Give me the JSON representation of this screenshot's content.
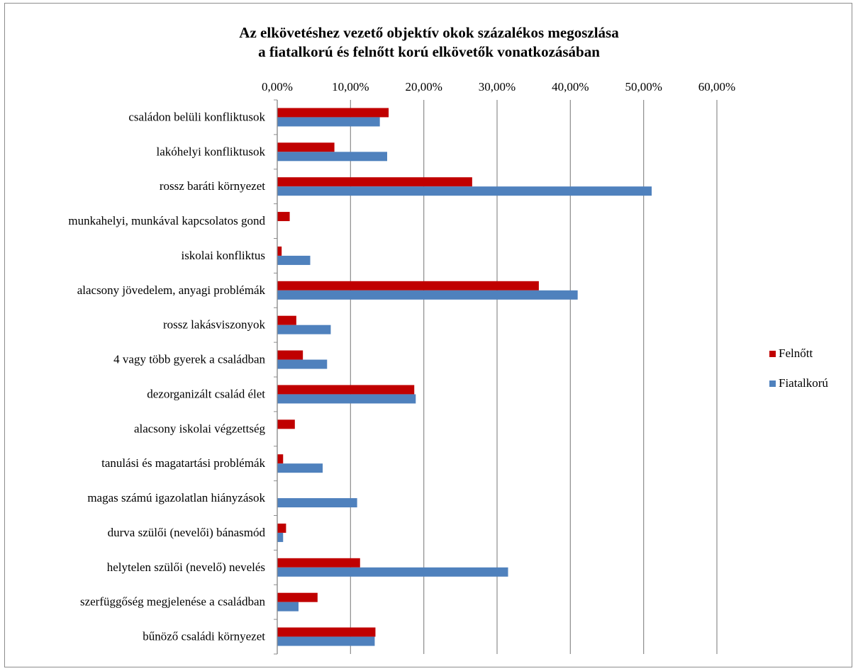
{
  "chart_data": {
    "type": "bar",
    "orientation": "horizontal",
    "title": [
      "Az elkövetéshez vezető objektív okok százalékos megoszlása",
      "a fiatalkorú és felnőtt korú elkövetők vonatkozásában"
    ],
    "xlim": [
      0,
      60
    ],
    "x_ticks": [
      "0,00%",
      "10,00%",
      "20,00%",
      "30,00%",
      "40,00%",
      "50,00%",
      "60,00%"
    ],
    "x_tick_values": [
      0,
      10,
      20,
      30,
      40,
      50,
      60
    ],
    "axis_position": "top",
    "grid": true,
    "legend_position": "right",
    "categories": [
      "családon belüli konfliktusok",
      "lakóhelyi konfliktusok",
      "rossz baráti környezet",
      "munkahelyi, munkával kapcsolatos gond",
      "iskolai konfliktus",
      "alacsony jövedelem, anyagi problémák",
      "rossz lakásviszonyok",
      "4 vagy több gyerek a családban",
      "dezorganizált család élet",
      "alacsony iskolai végzettség",
      "tanulási és magatartási problémák",
      "magas számú igazolatlan hiányzások",
      "durva szülői (nevelői) bánasmód",
      "helytelen szülői (nevelő) nevelés",
      "szerfüggőség megjelenése a családban",
      "bűnöző családi környezet"
    ],
    "series": [
      {
        "name": "Felnőtt",
        "color": "#c00000",
        "values": [
          15.2,
          7.8,
          26.6,
          1.7,
          0.6,
          35.7,
          2.6,
          3.5,
          18.7,
          2.4,
          0.8,
          0,
          1.2,
          11.3,
          5.5,
          13.4
        ]
      },
      {
        "name": "Fiatalkorú",
        "color": "#4f81bd",
        "values": [
          14.0,
          15.0,
          51.1,
          0,
          4.5,
          41.0,
          7.3,
          6.8,
          18.9,
          0,
          6.2,
          10.9,
          0.8,
          31.5,
          2.9,
          13.3
        ]
      }
    ]
  }
}
